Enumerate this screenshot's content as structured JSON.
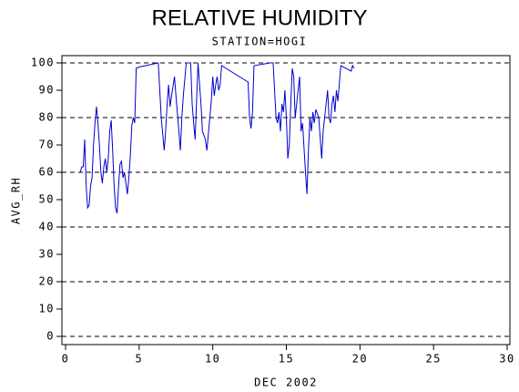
{
  "chart_data": {
    "type": "line",
    "title": "RELATIVE HUMIDITY",
    "subtitle": "STATION=HOGI",
    "xlabel": "DEC 2002",
    "ylabel": "AVG_RH",
    "xlim": [
      0,
      30
    ],
    "xticks": [
      0,
      5,
      10,
      15,
      20,
      25,
      30
    ],
    "ylim": [
      0,
      100
    ],
    "yticks": [
      0,
      10,
      20,
      30,
      40,
      50,
      60,
      70,
      80,
      90,
      100
    ],
    "ygrid": [
      0,
      20,
      40,
      60,
      80,
      100
    ],
    "series": [
      {
        "name": "AVG_RH",
        "color": "#0000cc",
        "x": [
          1.0,
          1.1,
          1.2,
          1.3,
          1.4,
          1.5,
          1.6,
          1.7,
          1.8,
          1.9,
          2.0,
          2.1,
          2.2,
          2.3,
          2.4,
          2.5,
          2.6,
          2.7,
          2.8,
          2.9,
          3.0,
          3.1,
          3.2,
          3.3,
          3.4,
          3.5,
          3.6,
          3.7,
          3.8,
          3.9,
          4.0,
          4.1,
          4.2,
          4.3,
          4.4,
          4.5,
          4.6,
          4.7,
          4.8,
          5.0,
          6.3,
          6.5,
          6.7,
          6.8,
          6.9,
          7.0,
          7.1,
          7.2,
          7.4,
          7.5,
          7.7,
          7.8,
          7.9,
          8.0,
          8.2,
          8.5,
          8.6,
          8.7,
          8.8,
          9.0,
          9.2,
          9.3,
          9.5,
          9.6,
          9.8,
          9.9,
          10.0,
          10.1,
          10.2,
          10.3,
          10.4,
          10.5,
          10.6,
          12.4,
          12.5,
          12.6,
          12.7,
          12.8,
          13.9,
          14.1,
          14.3,
          14.4,
          14.5,
          14.6,
          14.7,
          14.8,
          14.9,
          15.0,
          15.1,
          15.2,
          15.3,
          15.4,
          15.5,
          15.6,
          15.7,
          15.9,
          16.0,
          16.1,
          16.3,
          16.4,
          16.5,
          16.6,
          16.7,
          16.8,
          16.9,
          17.0,
          17.2,
          17.4,
          17.5,
          17.7,
          17.8,
          17.9,
          18.0,
          18.1,
          18.2,
          18.3,
          18.4,
          18.5,
          18.7,
          19.4,
          19.5,
          19.6
        ],
        "values": [
          60,
          62,
          62,
          72,
          55,
          47,
          48,
          55,
          58,
          70,
          78,
          84,
          78,
          70,
          60,
          56,
          62,
          65,
          60,
          65,
          75,
          79,
          68,
          55,
          47,
          45,
          55,
          63,
          64,
          58,
          60,
          56,
          52,
          58,
          66,
          77,
          80,
          78,
          98,
          98.5,
          100,
          80,
          68,
          75,
          85,
          92,
          84,
          88,
          95,
          88,
          75,
          68,
          80,
          88,
          100,
          100,
          85,
          78,
          72,
          100,
          85,
          75,
          72,
          68,
          80,
          86,
          95,
          88,
          92,
          95,
          90,
          92,
          99,
          93,
          80,
          76,
          82,
          99,
          100,
          100,
          80,
          78,
          82,
          75,
          85,
          82,
          90,
          80,
          65,
          70,
          85,
          98,
          95,
          80,
          85,
          95,
          75,
          78,
          60,
          52,
          68,
          80,
          75,
          82,
          78,
          83,
          80,
          65,
          75,
          85,
          90,
          80,
          78,
          85,
          88,
          82,
          90,
          86,
          99,
          97,
          99,
          98
        ]
      }
    ]
  }
}
